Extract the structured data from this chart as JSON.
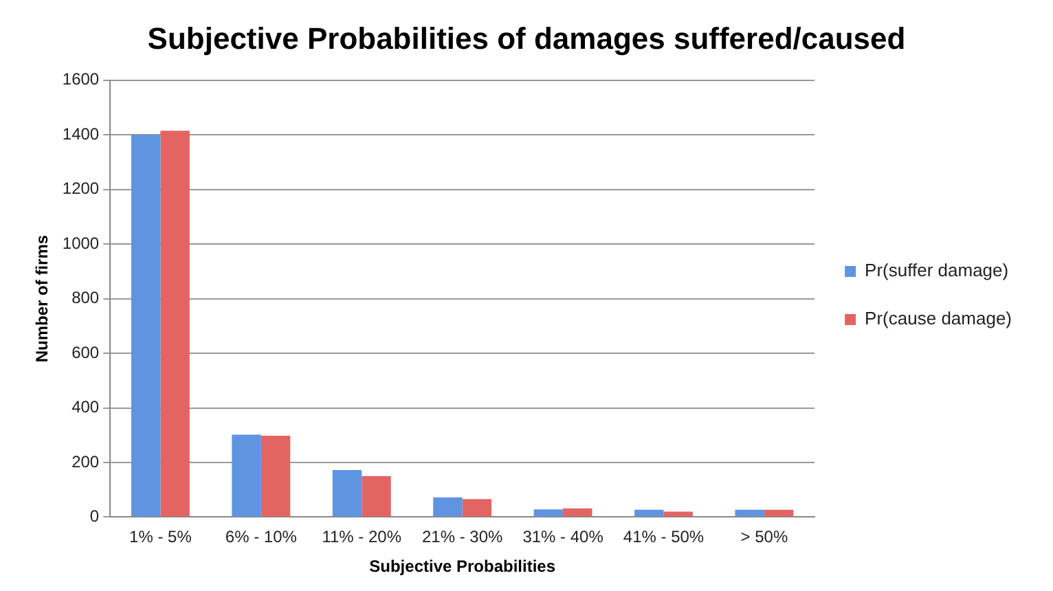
{
  "chart_data": {
    "type": "bar",
    "title": "Subjective Probabilities of damages suffered/caused",
    "xlabel": "Subjective Probabilities",
    "ylabel": "Number of firms",
    "categories": [
      "1% - 5%",
      "6% - 10%",
      "11% - 20%",
      "21% - 30%",
      "31% - 40%",
      "41% - 50%",
      "> 50%"
    ],
    "series": [
      {
        "name": "Pr(suffer damage)",
        "color": "#5f94e0",
        "values": [
          1400,
          302,
          172,
          72,
          28,
          27,
          27
        ]
      },
      {
        "name": "Pr(cause damage)",
        "color": "#e46464",
        "values": [
          1415,
          298,
          150,
          66,
          32,
          20,
          27
        ]
      }
    ],
    "ylim": [
      0,
      1600
    ],
    "yticks": [
      0,
      200,
      400,
      600,
      800,
      1000,
      1200,
      1400,
      1600
    ],
    "grid": "y",
    "legend": "right"
  }
}
